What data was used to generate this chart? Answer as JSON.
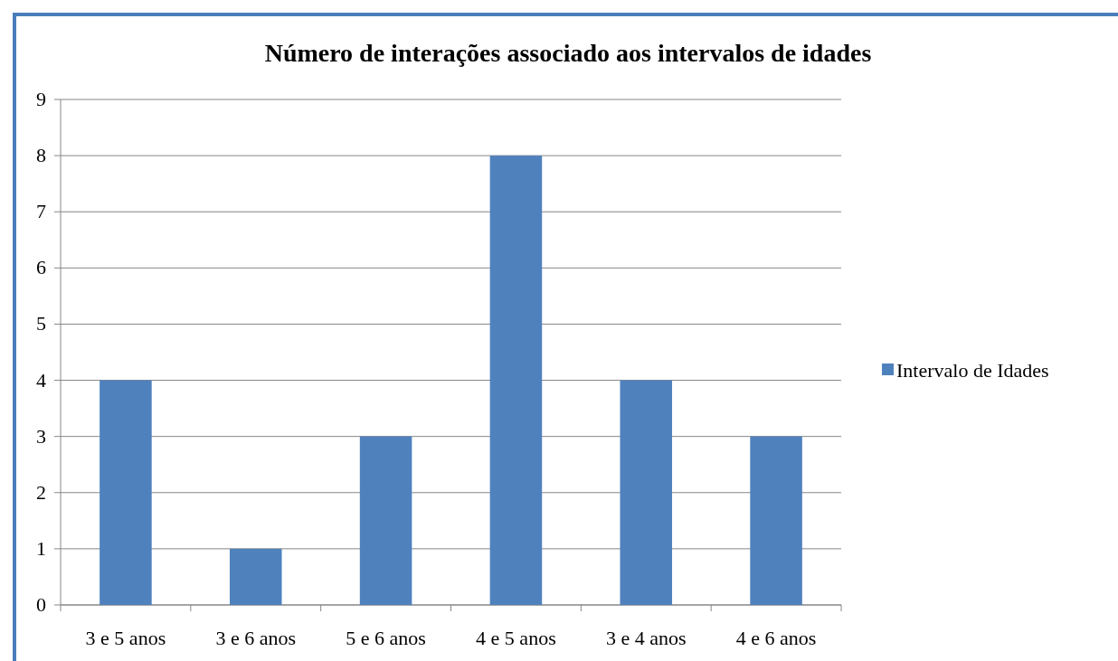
{
  "chart_data": {
    "type": "bar",
    "title": "Número de interações associado aos intervalos de idades",
    "categories": [
      "3 e 5 anos",
      "3 e 6 anos",
      "5 e 6 anos",
      "4 e 5 anos",
      "3 e 4 anos",
      "4 e 6 anos"
    ],
    "series": [
      {
        "name": "Intervalo de Idades",
        "color": "#4f81bd",
        "values": [
          4,
          1,
          3,
          8,
          4,
          3
        ]
      }
    ],
    "ylim": [
      0,
      9
    ],
    "yticks": [
      0,
      1,
      2,
      3,
      4,
      5,
      6,
      7,
      8,
      9
    ],
    "grid": "y",
    "legend": "right"
  }
}
